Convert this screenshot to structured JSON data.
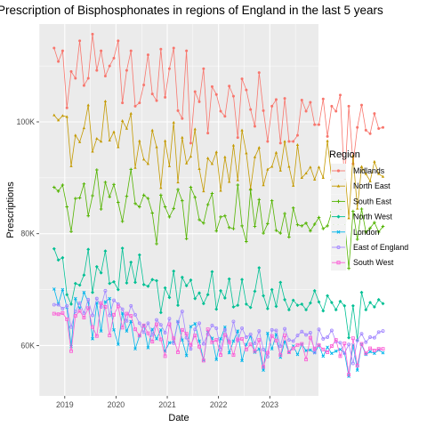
{
  "chart_data": {
    "type": "line",
    "title": "Prescription of Bisphosphonates in regions of England in the last 5 years",
    "xlabel": "Date",
    "ylabel": "Prescriptions",
    "x_ticks": [
      "2019",
      "2020",
      "2021",
      "2022",
      "2023"
    ],
    "y_ticks": [
      "60K",
      "80K",
      "100K"
    ],
    "y_tick_values": [
      60000,
      80000,
      100000
    ],
    "ylim": [
      51000,
      117500
    ],
    "xlim_years": [
      2018.5,
      2023.95
    ],
    "grid": true,
    "legend_title": "Region",
    "legend_position": "right",
    "x_start": "2018-10",
    "series": [
      {
        "name": "Midlands",
        "color": "#F8766D",
        "marker": "circle",
        "values": [
          113200,
          110800,
          112700,
          102500,
          109000,
          107800,
          114500,
          106500,
          107800,
          115700,
          109200,
          112700,
          108200,
          110000,
          111400,
          114500,
          103400,
          109200,
          112700,
          102800,
          103400,
          106600,
          112000,
          105000,
          103800,
          113000,
          104400,
          109500,
          113200,
          102000,
          100600,
          112700,
          96200,
          105400,
          103600,
          109500,
          98000,
          106300,
          104900,
          101900,
          101000,
          106400,
          104600,
          97200,
          107700,
          105700,
          102200,
          99200,
          108800,
          102000,
          96500,
          102800,
          104000,
          96200,
          104200,
          96500,
          96500,
          97600,
          103900,
          101900,
          103500,
          99500,
          99500,
          104100,
          97400,
          102800,
          101900,
          104800,
          89000,
          102800,
          92500,
          99000,
          103000,
          98500,
          97900,
          101500,
          98800,
          99000
        ]
      },
      {
        "name": "North East",
        "color": "#C49A00",
        "marker": "triangle",
        "values": [
          101200,
          100300,
          101100,
          100900,
          92100,
          97600,
          96400,
          98900,
          103000,
          94700,
          97000,
          96500,
          103700,
          96700,
          98200,
          95500,
          100200,
          98800,
          101500,
          91800,
          96600,
          93300,
          92500,
          98500,
          95500,
          88200,
          96600,
          92100,
          99900,
          89200,
          97200,
          92600,
          93800,
          98700,
          91600,
          87600,
          93500,
          92500,
          94600,
          87700,
          93700,
          89300,
          95800,
          89600,
          98500,
          94400,
          88100,
          93700,
          95400,
          88700,
          91500,
          92000,
          94500,
          91300,
          96500,
          92000,
          88600,
          95900,
          90000,
          90800,
          91900,
          89700,
          91900,
          90000,
          96600,
          89700,
          91600,
          91700,
          92100,
          82800,
          93900,
          84500,
          92000,
          90700,
          89400,
          92900,
          90700,
          90200
        ]
      },
      {
        "name": "South East",
        "color": "#53B400",
        "marker": "plus",
        "values": [
          88300,
          87600,
          88700,
          84800,
          80400,
          86300,
          86400,
          88900,
          83200,
          86800,
          91400,
          84400,
          89200,
          86600,
          88800,
          85600,
          82200,
          86700,
          91500,
          85400,
          84800,
          86900,
          86300,
          83700,
          78200,
          86900,
          84800,
          83000,
          84500,
          87900,
          85900,
          79100,
          88300,
          86500,
          82500,
          81900,
          85200,
          87200,
          80500,
          83000,
          83200,
          81100,
          80900,
          88700,
          81400,
          78600,
          87800,
          81300,
          86100,
          80100,
          81800,
          85900,
          80600,
          80100,
          83600,
          79400,
          84600,
          81600,
          81400,
          81900,
          80500,
          81700,
          82900,
          80900,
          81400,
          83900,
          78400,
          84800,
          82300,
          73800,
          84000,
          79000,
          84400,
          80300,
          81000,
          82000,
          80300,
          81300
        ]
      },
      {
        "name": "North West",
        "color": "#00C094",
        "marker": "diamond",
        "values": [
          77300,
          75300,
          75700,
          69100,
          67400,
          71100,
          70800,
          72600,
          77200,
          69500,
          74100,
          73000,
          76900,
          71100,
          71400,
          70000,
          77400,
          71200,
          74900,
          71300,
          76200,
          70900,
          70600,
          71800,
          71600,
          65900,
          70300,
          68600,
          73300,
          67200,
          72200,
          70700,
          71700,
          68400,
          69400,
          67500,
          69100,
          73200,
          66500,
          69800,
          68500,
          71900,
          66900,
          67200,
          71800,
          67400,
          66800,
          69700,
          73900,
          68900,
          66600,
          70000,
          67000,
          71300,
          68200,
          66400,
          68100,
          67200,
          67400,
          66400,
          67600,
          69800,
          67800,
          66200,
          68900,
          67700,
          66400,
          67900,
          67100,
          61400,
          67100,
          61000,
          69500,
          66400,
          67700,
          66900,
          68200,
          67500
        ]
      },
      {
        "name": "London",
        "color": "#00B6EB",
        "marker": "cross",
        "values": [
          70100,
          67400,
          70000,
          66800,
          59800,
          68400,
          66600,
          69500,
          67800,
          61200,
          67600,
          62600,
          67800,
          68400,
          62800,
          60200,
          65800,
          62600,
          64300,
          59400,
          61700,
          63600,
          59600,
          62900,
          61200,
          62800,
          59000,
          60500,
          60600,
          64300,
          61000,
          58200,
          63400,
          63900,
          60800,
          57400,
          62400,
          61300,
          57500,
          61200,
          63300,
          58700,
          60800,
          62600,
          57300,
          60200,
          61700,
          58800,
          59400,
          55600,
          62200,
          59400,
          62000,
          57900,
          60700,
          58800,
          59900,
          58400,
          60200,
          59100,
          59200,
          58700,
          60000,
          58100,
          59700,
          58600,
          59000,
          59300,
          58700,
          54500,
          60100,
          55600,
          60200,
          58400,
          58900,
          58600,
          59200,
          58700
        ]
      },
      {
        "name": "East of England",
        "color": "#A58AFF",
        "marker": "circle-open",
        "values": [
          67300,
          67300,
          66600,
          67100,
          63300,
          66100,
          67600,
          65800,
          68200,
          65400,
          68400,
          66900,
          69800,
          65400,
          68100,
          67400,
          66500,
          64400,
          67100,
          65500,
          64000,
          62400,
          64000,
          61900,
          64600,
          63700,
          62300,
          64800,
          60400,
          64200,
          66100,
          61400,
          59400,
          62900,
          64000,
          60300,
          62000,
          63600,
          63100,
          59300,
          62800,
          60800,
          64300,
          60900,
          63100,
          61500,
          62000,
          60400,
          62600,
          59300,
          58000,
          62800,
          62700,
          59900,
          63000,
          61000,
          60800,
          61800,
          62500,
          61900,
          62300,
          58800,
          62900,
          61200,
          61500,
          62700,
          60700,
          60500,
          58600,
          60200,
          56800,
          60900,
          62100,
          60600,
          61500,
          61400,
          62400,
          62600
        ]
      },
      {
        "name": "South West",
        "color": "#FB61D7",
        "marker": "square-open",
        "values": [
          65700,
          65600,
          65800,
          64700,
          59000,
          65300,
          66200,
          65000,
          66700,
          63300,
          61700,
          67600,
          66900,
          61800,
          65500,
          67000,
          63200,
          65700,
          65300,
          62900,
          61800,
          63600,
          62200,
          60700,
          63800,
          61100,
          58100,
          63800,
          61300,
          58800,
          62800,
          62100,
          60100,
          61800,
          59800,
          57300,
          62900,
          60600,
          61000,
          58300,
          61900,
          60600,
          58300,
          61100,
          61200,
          59300,
          60200,
          59000,
          61000,
          56200,
          58700,
          61700,
          60900,
          58300,
          61800,
          58800,
          59500,
          60100,
          60300,
          57500,
          61400,
          59400,
          60100,
          59300,
          58800,
          59900,
          61000,
          58100,
          60400,
          54800,
          61300,
          56400,
          60300,
          58600,
          59500,
          59100,
          59400,
          59400
        ]
      }
    ]
  }
}
